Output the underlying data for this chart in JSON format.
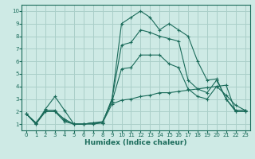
{
  "title": "",
  "xlabel": "Humidex (Indice chaleur)",
  "ylabel": "",
  "background_color": "#ceeae5",
  "grid_color": "#aacfc9",
  "line_color": "#1a6b5a",
  "xlim": [
    -0.5,
    23.5
  ],
  "ylim": [
    0.5,
    10.5
  ],
  "xticks": [
    0,
    1,
    2,
    3,
    4,
    5,
    6,
    7,
    8,
    9,
    10,
    11,
    12,
    13,
    14,
    15,
    16,
    17,
    18,
    19,
    20,
    21,
    22,
    23
  ],
  "yticks": [
    1,
    2,
    3,
    4,
    5,
    6,
    7,
    8,
    9,
    10
  ],
  "series": [
    [
      1.8,
      1.0,
      2.2,
      3.2,
      2.1,
      1.0,
      1.0,
      1.1,
      1.1,
      3.0,
      9.0,
      9.5,
      10.0,
      9.5,
      8.5,
      9.0,
      8.5,
      8.0,
      6.0,
      4.5,
      4.6,
      3.0,
      2.1,
      2.1
    ],
    [
      1.8,
      1.0,
      2.0,
      2.0,
      1.4,
      1.0,
      1.0,
      1.1,
      1.1,
      3.0,
      7.3,
      7.5,
      8.5,
      8.3,
      8.0,
      7.8,
      7.6,
      4.5,
      3.8,
      3.5,
      4.5,
      3.0,
      2.0,
      2.0
    ],
    [
      1.8,
      1.1,
      2.1,
      2.1,
      1.3,
      1.0,
      1.0,
      1.1,
      1.2,
      2.8,
      5.4,
      5.5,
      6.5,
      6.5,
      6.5,
      5.8,
      5.5,
      3.8,
      3.2,
      3.0,
      4.0,
      3.3,
      2.5,
      2.1
    ],
    [
      1.8,
      1.1,
      2.0,
      2.0,
      1.2,
      1.0,
      1.0,
      1.0,
      1.1,
      2.6,
      2.9,
      3.0,
      3.2,
      3.3,
      3.5,
      3.5,
      3.6,
      3.7,
      3.8,
      3.9,
      4.0,
      4.1,
      2.0,
      2.0
    ]
  ],
  "tick_fontsize": 5.0,
  "xlabel_fontsize": 6.5
}
